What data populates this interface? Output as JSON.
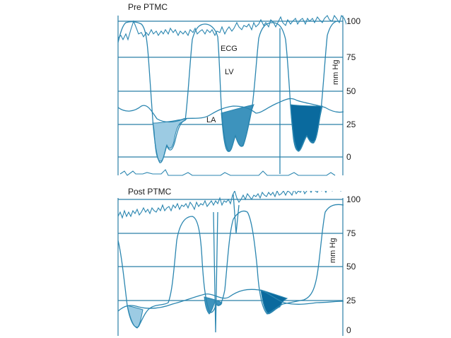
{
  "colors": {
    "grid": "#2b7fa6",
    "trace": "#2b86b0",
    "gradient_light": "#9ccbe3",
    "gradient_mid": "#3d93bd",
    "gradient_dark": "#0a6a9e"
  },
  "chart_data": [
    {
      "type": "line",
      "title": "Pre PTMC",
      "ylabel": "mm Hg",
      "yticks": [
        0,
        25,
        50,
        75,
        100
      ],
      "ylim": [
        0,
        100
      ],
      "series": [
        {
          "name": "ECG"
        },
        {
          "name": "LV"
        },
        {
          "name": "LA"
        }
      ],
      "gradients": [
        {
          "label": "",
          "shade": "light"
        },
        {
          "label": "",
          "shade": "mid"
        },
        {
          "label": "",
          "shade": "dark"
        }
      ],
      "grid": true
    },
    {
      "type": "line",
      "title": "Post PTMC",
      "ylabel": "mm Hg",
      "yticks": [
        0,
        25,
        50,
        75,
        100
      ],
      "ylim": [
        0,
        100
      ],
      "grid": true
    }
  ]
}
